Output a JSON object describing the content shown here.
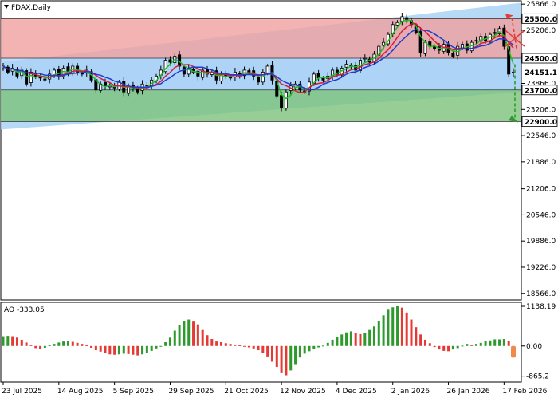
{
  "window": {
    "symbol_label": "FDAX,Daily",
    "menu_icon": "triangle-down-icon"
  },
  "colors": {
    "bull_candle": "#000000",
    "bear_candle": "#000000",
    "ma_fast": "#1fbf1f",
    "ma_mid": "#d81b3b",
    "ma_slow": "#1e3ccf",
    "zone_resistance": "#f0a0a0",
    "zone_middle": "#a9d2f5",
    "zone_support": "#7cc27c",
    "channel": "#a9d2f5",
    "arrow_up": "#e53935",
    "arrow_down": "#2e9a2e",
    "arrow_cross": "#e53935",
    "ao_up": "#2e9a2e",
    "ao_down": "#e53935",
    "ao_last": "#f08a4b"
  },
  "chart_data": [
    {
      "type": "candlestick",
      "title": "FDAX,Daily",
      "ylim": [
        18400,
        25950
      ],
      "y_ticks": [
        25866.0,
        25206.0,
        24546.0,
        23866.0,
        23206.0,
        22546.0,
        21886.0,
        21206.0,
        20546.0,
        19886.0,
        19226.0,
        18566.0
      ],
      "price_labels": [
        {
          "value": 25500.0,
          "text": "25500.0",
          "style": "level"
        },
        {
          "value": 24500.0,
          "text": "24500.0",
          "style": "level"
        },
        {
          "value": 24151.1,
          "text": "24151.1",
          "style": "current"
        },
        {
          "value": 23700.0,
          "text": "23700.0",
          "style": "level"
        },
        {
          "value": 22900.0,
          "text": "22900.0",
          "style": "level"
        }
      ],
      "zones": [
        {
          "name": "resistance",
          "from": 24500,
          "to": 25500
        },
        {
          "name": "middle",
          "from": 23700,
          "to": 24500
        },
        {
          "name": "support",
          "from": 22900,
          "to": 23700
        }
      ],
      "channel": {
        "start_upper": 24400,
        "start_lower": 22700,
        "end_upper": 25900,
        "end_lower": 23650
      },
      "x_labels": [
        {
          "index": 0,
          "text": "23 Jul 2025"
        },
        {
          "index": 12,
          "text": "14 Aug 2025"
        },
        {
          "index": 24,
          "text": "5 Sep 2025"
        },
        {
          "index": 36,
          "text": "29 Sep 2025"
        },
        {
          "index": 48,
          "text": "21 Oct 2025"
        },
        {
          "index": 60,
          "text": "12 Nov 2025"
        },
        {
          "index": 72,
          "text": "4 Dec 2025"
        },
        {
          "index": 84,
          "text": "2 Jan 2026"
        },
        {
          "index": 96,
          "text": "26 Jan 2026"
        },
        {
          "index": 108,
          "text": "17 Feb 2026"
        }
      ],
      "closes": [
        24300,
        24150,
        24250,
        24050,
        24200,
        23850,
        24150,
        24050,
        24000,
        23950,
        24100,
        24200,
        24050,
        24250,
        24150,
        24300,
        24150,
        24100,
        24200,
        23950,
        23700,
        23850,
        23800,
        23800,
        23750,
        23900,
        23650,
        23800,
        23750,
        23650,
        23850,
        23800,
        23950,
        24050,
        24200,
        24450,
        24400,
        24550,
        24300,
        24100,
        24250,
        24150,
        24050,
        24200,
        24100,
        24150,
        23950,
        24100,
        24050,
        24000,
        24150,
        24050,
        24200,
        24150,
        24050,
        23900,
        24150,
        24300,
        23950,
        23550,
        23250,
        23650,
        23800,
        23850,
        23700,
        23650,
        23900,
        24100,
        24000,
        23950,
        24050,
        24200,
        24100,
        24250,
        24350,
        24300,
        24200,
        24450,
        24500,
        24400,
        24600,
        24800,
        24900,
        25100,
        25350,
        25400,
        25550,
        25450,
        25350,
        25150,
        24650,
        24900,
        24800,
        24750,
        24700,
        24850,
        24650,
        24550,
        24800,
        24850,
        24700,
        24900,
        24950,
        25050,
        24950,
        25100,
        25150,
        25250,
        24800,
        24100,
        24151
      ]
    },
    {
      "type": "bar",
      "title": "AO -333.05",
      "ylim": [
        -965.2,
        1138.19
      ],
      "y_ticks": [
        {
          "value": 1138.19,
          "text": "1138.19"
        },
        {
          "value": 0,
          "text": "0.00"
        },
        {
          "value": -865.2,
          "text": "-865.2"
        }
      ],
      "values": [
        280,
        290,
        280,
        240,
        180,
        100,
        30,
        -60,
        -90,
        -50,
        20,
        60,
        100,
        130,
        150,
        120,
        90,
        60,
        20,
        -50,
        -120,
        -160,
        -210,
        -240,
        -250,
        -240,
        -220,
        -230,
        -250,
        -270,
        -240,
        -200,
        -140,
        -70,
        0,
        110,
        240,
        440,
        590,
        720,
        760,
        700,
        620,
        460,
        310,
        200,
        130,
        110,
        80,
        60,
        40,
        20,
        -10,
        -40,
        -70,
        -120,
        -200,
        -300,
        -450,
        -600,
        -780,
        -840,
        -700,
        -520,
        -330,
        -220,
        -150,
        -90,
        -40,
        10,
        90,
        180,
        260,
        330,
        390,
        420,
        380,
        340,
        380,
        460,
        560,
        720,
        880,
        1040,
        1110,
        1138,
        1100,
        960,
        760,
        540,
        330,
        180,
        80,
        -30,
        -100,
        -140,
        -150,
        -100,
        -60,
        10,
        60,
        40,
        60,
        90,
        140,
        160,
        190,
        190,
        200,
        140,
        -333
      ]
    }
  ]
}
